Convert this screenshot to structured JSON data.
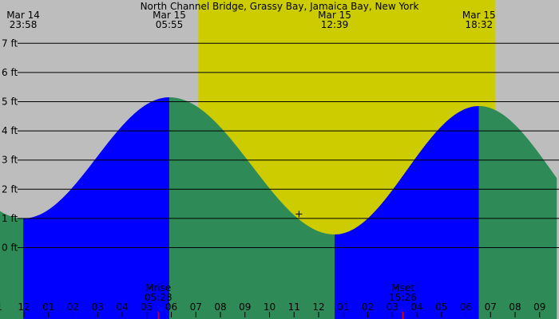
{
  "chart_data": {
    "type": "area",
    "title": "North Channel Bridge, Grassy Bay, Jamaica Bay, New York",
    "ylabel": "",
    "xlabel": "",
    "ylim": [
      -1.7,
      8.25
    ],
    "xlim_hours": [
      -1.0,
      21.7
    ],
    "y_ticks": [
      {
        "value": 0,
        "label": "0 ft"
      },
      {
        "value": 1,
        "label": "1 ft"
      },
      {
        "value": 2,
        "label": "2 ft"
      },
      {
        "value": 3,
        "label": "3 ft"
      },
      {
        "value": 4,
        "label": "4 ft"
      },
      {
        "value": 5,
        "label": "5 ft"
      },
      {
        "value": 6,
        "label": "6 ft"
      },
      {
        "value": 7,
        "label": "7 ft"
      }
    ],
    "x_ticks": [
      {
        "hour": -1,
        "label": "1"
      },
      {
        "hour": 0,
        "label": "12"
      },
      {
        "hour": 1,
        "label": "01"
      },
      {
        "hour": 2,
        "label": "02"
      },
      {
        "hour": 3,
        "label": "03"
      },
      {
        "hour": 4,
        "label": "04"
      },
      {
        "hour": 5,
        "label": "05"
      },
      {
        "hour": 6,
        "label": "06"
      },
      {
        "hour": 7,
        "label": "07"
      },
      {
        "hour": 8,
        "label": "08"
      },
      {
        "hour": 9,
        "label": "09"
      },
      {
        "hour": 10,
        "label": "10"
      },
      {
        "hour": 11,
        "label": "11"
      },
      {
        "hour": 12,
        "label": "12"
      },
      {
        "hour": 13,
        "label": "01"
      },
      {
        "hour": 14,
        "label": "02"
      },
      {
        "hour": 15,
        "label": "03"
      },
      {
        "hour": 16,
        "label": "04"
      },
      {
        "hour": 17,
        "label": "05"
      },
      {
        "hour": 18,
        "label": "06"
      },
      {
        "hour": 19,
        "label": "07"
      },
      {
        "hour": 20,
        "label": "08"
      },
      {
        "hour": 21,
        "label": "09"
      }
    ],
    "tide_extremes": [
      {
        "date": "Mar 14",
        "time": "23:58",
        "hour": -0.03,
        "height_ft": 1.0,
        "kind": "low"
      },
      {
        "date": "Mar 15",
        "time": "05:55",
        "hour": 5.92,
        "height_ft": 5.15,
        "kind": "high"
      },
      {
        "date": "Mar 15",
        "time": "12:39",
        "hour": 12.65,
        "height_ft": 0.45,
        "kind": "low"
      },
      {
        "date": "Mar 15",
        "time": "18:32",
        "hour": 18.53,
        "height_ft": 4.85,
        "kind": "high"
      }
    ],
    "daylight_hours": [
      7.1,
      19.2
    ],
    "moon_events": [
      {
        "label": "Mrise",
        "time": "05:28",
        "hour": 5.47
      },
      {
        "label": "Mset",
        "time": "15:26",
        "hour": 15.43
      }
    ],
    "current_marker": {
      "hour": 11.2,
      "height_ft": 1.15
    },
    "grid": true,
    "legend": "none",
    "colors": {
      "night": "#bdbdbd",
      "day": "#cccc00",
      "rising": "#0000ff",
      "falling": "#2e8b57",
      "grid": "#000000",
      "moon_tick": "#ff0000"
    }
  }
}
